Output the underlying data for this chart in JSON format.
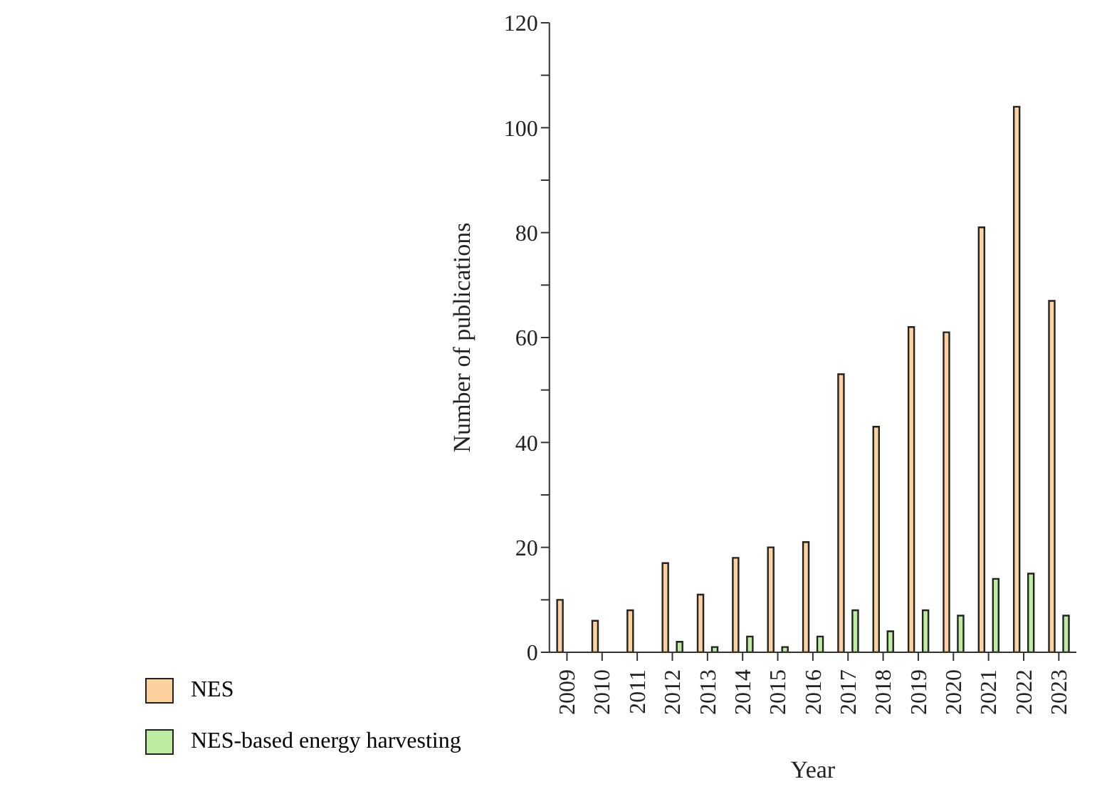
{
  "chart_data": {
    "type": "bar",
    "xlabel": "Year",
    "ylabel": "Number of publications",
    "categories": [
      "2009",
      "2010",
      "2011",
      "2012",
      "2013",
      "2014",
      "2015",
      "2016",
      "2017",
      "2018",
      "2019",
      "2020",
      "2021",
      "2022",
      "2023"
    ],
    "series": [
      {
        "name": "NES",
        "color": "#fdd19e",
        "values": [
          10,
          6,
          8,
          17,
          11,
          18,
          20,
          21,
          53,
          43,
          62,
          61,
          81,
          104,
          67
        ]
      },
      {
        "name": "NES-based energy harvesting",
        "color": "#bdeca0",
        "values": [
          0,
          0,
          0,
          2,
          1,
          3,
          1,
          3,
          8,
          4,
          8,
          7,
          14,
          15,
          7
        ]
      }
    ],
    "ylim": [
      0,
      120
    ],
    "yticks": [
      0,
      {
        "value": 10,
        "label": null
      },
      20,
      {
        "value": 30,
        "label": null
      },
      40,
      {
        "value": 50,
        "label": null
      },
      60,
      {
        "value": 70,
        "label": null
      },
      80,
      {
        "value": 90,
        "label": null
      },
      100,
      {
        "value": 110,
        "label": null
      },
      120
    ],
    "grid": false,
    "legend": "bottom left"
  }
}
